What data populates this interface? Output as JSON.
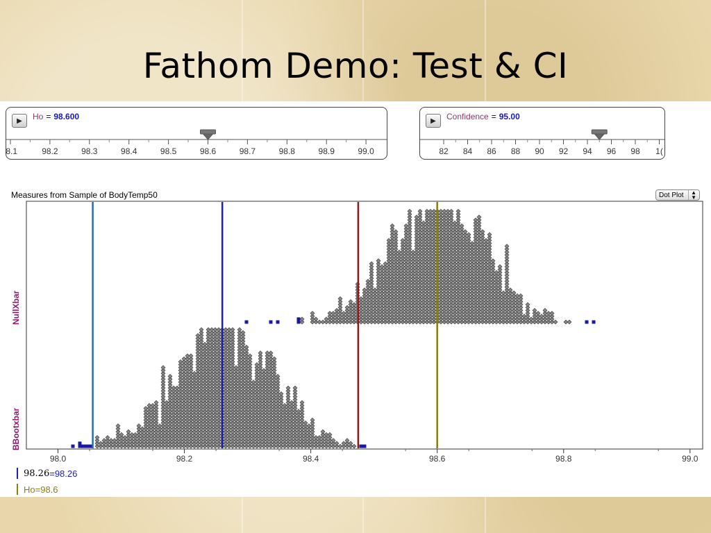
{
  "slide": {
    "title": "Fathom Demo: Test & CI"
  },
  "slider_ho": {
    "name": "Ho",
    "value": "98.600",
    "ticks": [
      ".8.1",
      "98.2",
      "98.3",
      "98.4",
      "98.5",
      "98.6",
      "98.7",
      "98.8",
      "98.9",
      "99.0"
    ],
    "thumb_value": 98.6
  },
  "slider_conf": {
    "name": "Confidence",
    "value": "95.00",
    "ticks": [
      "82",
      "84",
      "86",
      "88",
      "90",
      "92",
      "94",
      "96",
      "98",
      "1("
    ],
    "thumb_value": 95
  },
  "graph": {
    "title": "Measures from Sample of BodyTemp50",
    "plot_type": "Dot Plot",
    "top_attribute": "NullXbar",
    "bottom_attribute": "BBootxbar",
    "x_ticks": [
      "98.0",
      "98.2",
      "98.4",
      "98.6",
      "98.8",
      "99.0"
    ],
    "legend": [
      {
        "lhs": "98.26",
        "eq": " = ",
        "rhs": "98.26",
        "color": "#1c1cc8",
        "text_color": "#1c1cc8"
      },
      {
        "lhs": "Ho",
        "eq": " = ",
        "rhs": "98.6",
        "color": "#8a7d10",
        "text_color": "#8a7d10"
      }
    ]
  },
  "chart_data": {
    "type": "scatter",
    "xlim": [
      97.95,
      99.02
    ],
    "x_ticks": [
      98.0,
      98.2,
      98.4,
      98.6,
      98.8,
      99.0
    ],
    "series": [
      {
        "name": "NullXbar",
        "center": 98.6,
        "spread": 0.075,
        "tail_low": 98.385,
        "tail_high": 98.815,
        "color": "#888888",
        "tail_color": "#1a1aa0"
      },
      {
        "name": "BBootxbar",
        "center": 98.26,
        "spread": 0.075,
        "tail_low": 98.055,
        "tail_high": 98.475,
        "color": "#888888",
        "tail_color": "#1a1aa0"
      }
    ],
    "reference_lines": [
      {
        "x": 98.055,
        "color": "#2b6ca8"
      },
      {
        "x": 98.26,
        "color": "#1c1cc8"
      },
      {
        "x": 98.475,
        "color": "#8b1a1a"
      },
      {
        "x": 98.6,
        "color": "#8a7d10"
      }
    ]
  }
}
